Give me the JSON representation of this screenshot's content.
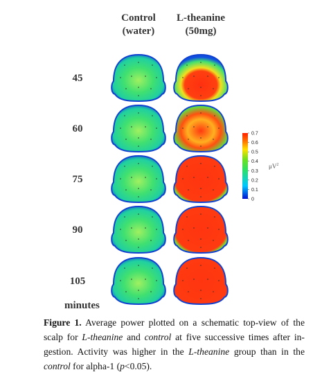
{
  "header": {
    "control": [
      "Control",
      "(water)"
    ],
    "theanine": [
      "L-theanine",
      "(50mg)"
    ]
  },
  "rows": [
    "45",
    "60",
    "75",
    "90",
    "105"
  ],
  "row_unit": "minutes",
  "colorbar": {
    "lim": [
      0,
      0.7
    ],
    "ticks": [
      0.7,
      0.6,
      0.5,
      0.4,
      0.3,
      0.2,
      0.1,
      0
    ],
    "unit": "μV",
    "unit_power": "2"
  },
  "caption": [
    [
      {
        "text": "Figure 1.",
        "style": "bold"
      },
      {
        "text": " Average power plotted on a schematic top-view of the",
        "style": "normal"
      }
    ],
    [
      {
        "text": "scalp for ",
        "style": "normal"
      },
      {
        "text": "L-theanine",
        "style": "italic"
      },
      {
        "text": " and ",
        "style": "normal"
      },
      {
        "text": "control",
        "style": "italic"
      },
      {
        "text": " at five successive times after in-",
        "style": "normal"
      }
    ],
    [
      {
        "text": "gestion. Activity was higher in the ",
        "style": "normal"
      },
      {
        "text": "L-theanine",
        "style": "italic"
      },
      {
        "text": " group than in the",
        "style": "normal"
      }
    ],
    [
      {
        "text": "control",
        "style": "italic"
      },
      {
        "text": " for alpha-1 (",
        "style": "normal"
      },
      {
        "text": "p",
        "style": "italic"
      },
      {
        "text": "<0.05).",
        "style": "normal"
      }
    ]
  ]
}
